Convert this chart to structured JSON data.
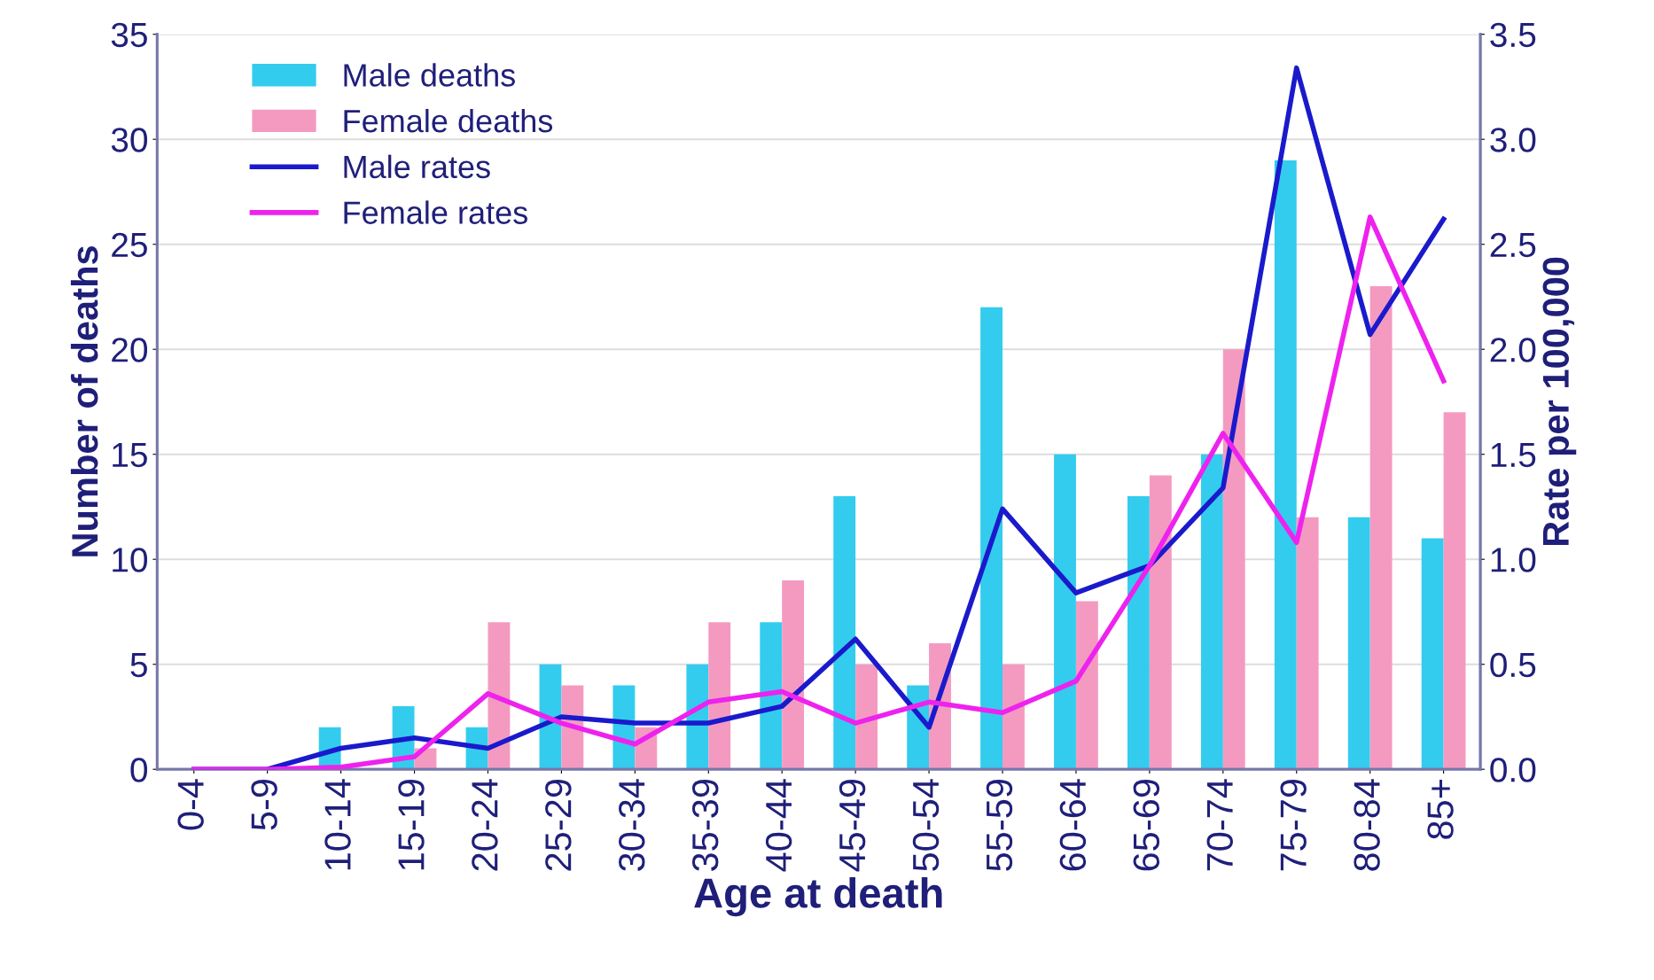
{
  "chart_data": {
    "type": "bar",
    "xlabel": "Age at death",
    "ylabel": "Number of deaths",
    "y2label": "Rate per 100,000",
    "categories": [
      "0-4",
      "5-9",
      "10-14",
      "15-19",
      "20-24",
      "25-29",
      "30-34",
      "35-39",
      "40-44",
      "45-49",
      "50-54",
      "55-59",
      "60-64",
      "65-69",
      "70-74",
      "75-79",
      "80-84",
      "85+"
    ],
    "series": [
      {
        "name": "Male deaths",
        "color": "#33ccee",
        "values": [
          0,
          0,
          2,
          3,
          2,
          5,
          4,
          5,
          7,
          13,
          4,
          22,
          15,
          13,
          15,
          29,
          12,
          11
        ]
      },
      {
        "name": "Female deaths",
        "color": "#f49ac1",
        "values": [
          0,
          0,
          0,
          1,
          7,
          4,
          2,
          7,
          9,
          5,
          6,
          5,
          8,
          14,
          20,
          12,
          23,
          17
        ]
      },
      {
        "name": "Male rates",
        "type": "line",
        "axis": "y2",
        "color": "#1a1acc",
        "values": [
          0,
          0,
          0.1,
          0.15,
          0.1,
          0.25,
          0.22,
          0.22,
          0.3,
          0.62,
          0.2,
          1.24,
          0.84,
          0.97,
          1.34,
          3.34,
          2.07,
          2.62
        ]
      },
      {
        "name": "Female rates",
        "type": "line",
        "axis": "y2",
        "color": "#ee22ee",
        "values": [
          0,
          0,
          0.01,
          0.06,
          0.36,
          0.22,
          0.12,
          0.32,
          0.37,
          0.22,
          0.32,
          0.27,
          0.42,
          0.97,
          1.6,
          1.08,
          2.63,
          1.85
        ]
      }
    ],
    "ylim": [
      0,
      35
    ],
    "yticks": [
      0,
      5,
      10,
      15,
      20,
      25,
      30,
      35
    ],
    "y2lim": [
      0,
      3.5
    ],
    "y2ticks": [
      {
        "value": 0,
        "label": "0.0"
      },
      {
        "value": 0.5,
        "label": "0.5"
      },
      {
        "value": 1,
        "label": "1.0"
      },
      {
        "value": 1.5,
        "label": "1.5"
      },
      {
        "value": 2,
        "label": "2.0"
      },
      {
        "value": 2.5,
        "label": "2.5"
      },
      {
        "value": 3,
        "label": "3.0"
      },
      {
        "value": 3.5,
        "label": "3.5"
      }
    ],
    "grid": "y",
    "legend": "top left"
  }
}
